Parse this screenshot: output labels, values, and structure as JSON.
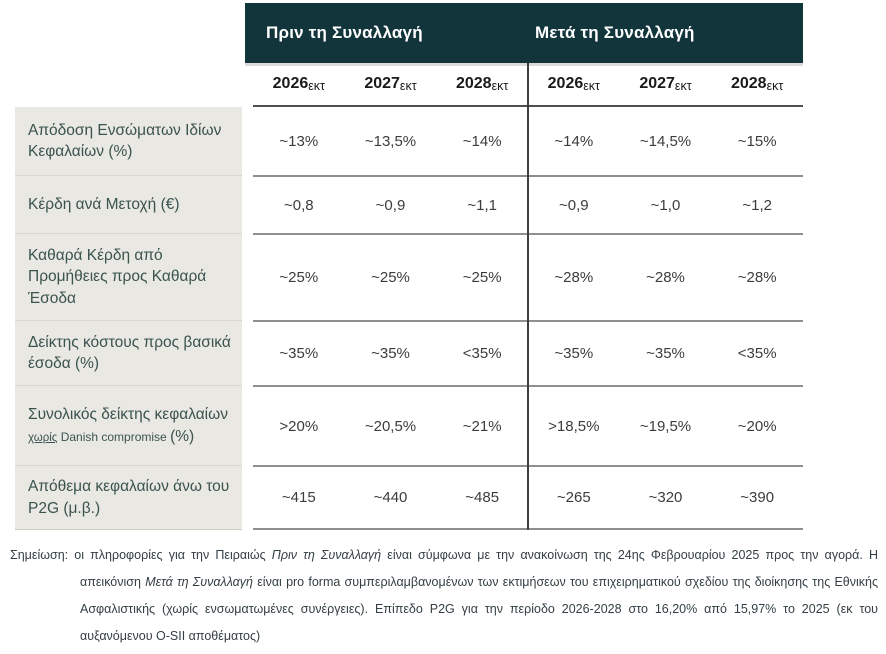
{
  "colors": {
    "group_header_bg": "#12343b",
    "group_header_text": "#ffffff",
    "label_column_bg": "#eae8e2",
    "label_text": "#3a534f",
    "value_text": "#3c3c3c",
    "row_border": "#8f8f8f"
  },
  "table": {
    "group_headers": {
      "before": "Πριν τη Συναλλαγή",
      "after": "Μετά τη Συναλλαγή"
    },
    "years": [
      {
        "year": "2026",
        "suffix": "εκτ"
      },
      {
        "year": "2027",
        "suffix": "εκτ"
      },
      {
        "year": "2028",
        "suffix": "εκτ"
      }
    ],
    "rows": [
      {
        "label": "Απόδοση Ενσώματων Ιδίων Κεφαλαίων (%)",
        "before": [
          "~13%",
          "~13,5%",
          "~14%"
        ],
        "after": [
          "~14%",
          "~14,5%",
          "~15%"
        ]
      },
      {
        "label": "Κέρδη ανά Μετοχή (€)",
        "before": [
          "~0,8",
          "~0,9",
          "~1,1"
        ],
        "after": [
          "~0,9",
          "~1,0",
          "~1,2"
        ]
      },
      {
        "label": "Καθαρά Κέρδη από Προμήθειες προς Καθαρά Έσοδα",
        "before": [
          "~25%",
          "~25%",
          "~25%"
        ],
        "after": [
          "~28%",
          "~28%",
          "~28%"
        ]
      },
      {
        "label": "Δείκτης κόστους προς βασικά έσοδα (%)",
        "before": [
          "~35%",
          "~35%",
          "<35%"
        ],
        "after": [
          "~35%",
          "~35%",
          "<35%"
        ]
      },
      {
        "label_main": "Συνολικός δείκτης κεφαλαίων ",
        "label_small_underlined": "χωρίς",
        "label_small": " Danish compromise ",
        "label_suffix": "(%)",
        "before": [
          ">20%",
          "~20,5%",
          "~21%"
        ],
        "after": [
          ">18,5%",
          "~19,5%",
          "~20%"
        ]
      },
      {
        "label": "Απόθεμα κεφαλαίων άνω του P2G (μ.β.)",
        "before": [
          "~415",
          "~440",
          "~485"
        ],
        "after": [
          "~265",
          "~320",
          "~390"
        ]
      }
    ]
  },
  "footnote": {
    "s1": "Σημείωση: οι πληροφορίες για την Πειραιώς ",
    "i1": "Πριν τη Συναλλαγή",
    "s2": " είναι σύμφωνα με την ανακοίνωση της 24ης Φεβρουαρίου 2025 προς την αγορά. Η απεικόνιση ",
    "i2": "Μετά τη Συναλλαγή",
    "s3": " είναι pro forma συμπεριλαμβανομένων των εκτιμήσεων του επιχειρηματικού σχεδίου της διοίκησης της Εθνικής Ασφαλιστικής (χωρίς ενσωματωμένες συνέργειες). Επίπεδο P2G για την περίοδο 2026-2028 στο 16,20% από 15,97% το 2025 (εκ του αυξανόμενου Ο-SII αποθέματος)"
  }
}
